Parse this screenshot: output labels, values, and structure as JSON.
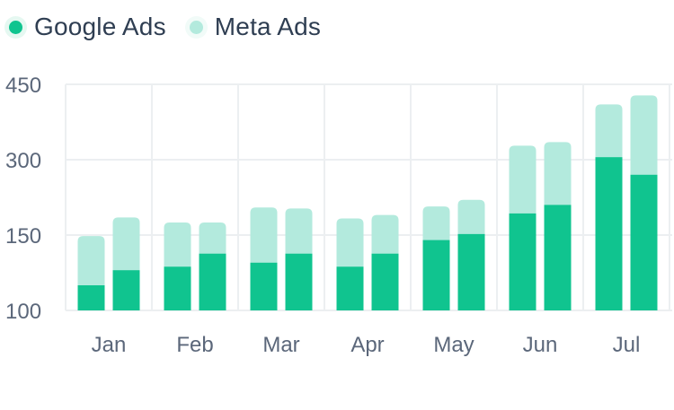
{
  "colors": {
    "google": "#10c48f",
    "meta": "#b3eadd",
    "grid": "#eceff1",
    "text": "#5b677a"
  },
  "chart_data": {
    "type": "bar",
    "stacked": true,
    "grid": true,
    "legend_placement": "top-left",
    "categories": [
      "Jan",
      "Feb",
      "Mar",
      "Apr",
      "May",
      "Jun",
      "Jul"
    ],
    "bars_per_category": 2,
    "y_ticks": [
      "100",
      "150",
      "300",
      "450"
    ],
    "series": [
      {
        "name": "Google Ads",
        "values": [
          [
            50,
            80
          ],
          [
            87,
            113
          ],
          [
            95,
            113
          ],
          [
            87,
            113
          ],
          [
            140,
            152
          ],
          [
            193,
            210
          ],
          [
            305,
            270
          ]
        ]
      },
      {
        "name": "Meta Ads",
        "values": [
          [
            98,
            105
          ],
          [
            88,
            62
          ],
          [
            110,
            90
          ],
          [
            96,
            77
          ],
          [
            67,
            68
          ],
          [
            135,
            125
          ],
          [
            105,
            158
          ]
        ]
      }
    ]
  }
}
